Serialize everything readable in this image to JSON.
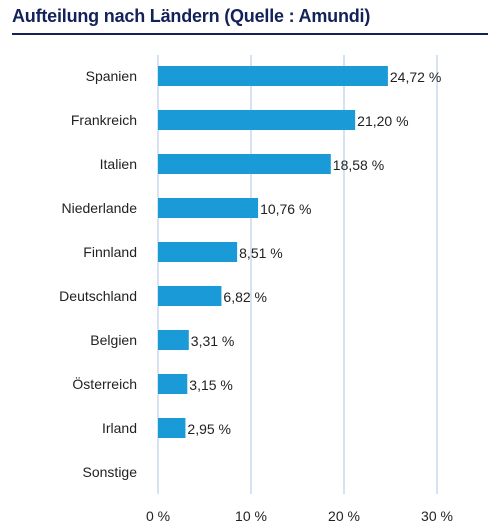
{
  "title": "Aufteilung nach Ländern (Quelle : Amundi)",
  "colors": {
    "bar": "#1a9ad6",
    "grid": "#c9d8ea",
    "title": "#13235a",
    "text": "#222222"
  },
  "chart_data": {
    "type": "bar",
    "orientation": "horizontal",
    "title": "Aufteilung nach Ländern (Quelle : Amundi)",
    "categories": [
      "Spanien",
      "Frankreich",
      "Italien",
      "Niederlande",
      "Finnland",
      "Deutschland",
      "Belgien",
      "Österreich",
      "Irland",
      "Sonstige"
    ],
    "values": [
      24.72,
      21.2,
      18.58,
      10.76,
      8.51,
      6.82,
      3.31,
      3.15,
      2.95,
      null
    ],
    "value_labels": [
      "24,72 %",
      "21,20 %",
      "18,58 %",
      "10,76 %",
      "8,51 %",
      "6,82 %",
      "3,31 %",
      "3,15 %",
      "2,95 %",
      ""
    ],
    "xlim": [
      0,
      30
    ],
    "xticks": [
      0,
      10,
      20,
      30
    ],
    "xtick_labels": [
      "0 %",
      "10 %",
      "20 %",
      "30 %"
    ],
    "xlabel": "",
    "ylabel": "",
    "grid": "vertical",
    "legend": "none"
  }
}
